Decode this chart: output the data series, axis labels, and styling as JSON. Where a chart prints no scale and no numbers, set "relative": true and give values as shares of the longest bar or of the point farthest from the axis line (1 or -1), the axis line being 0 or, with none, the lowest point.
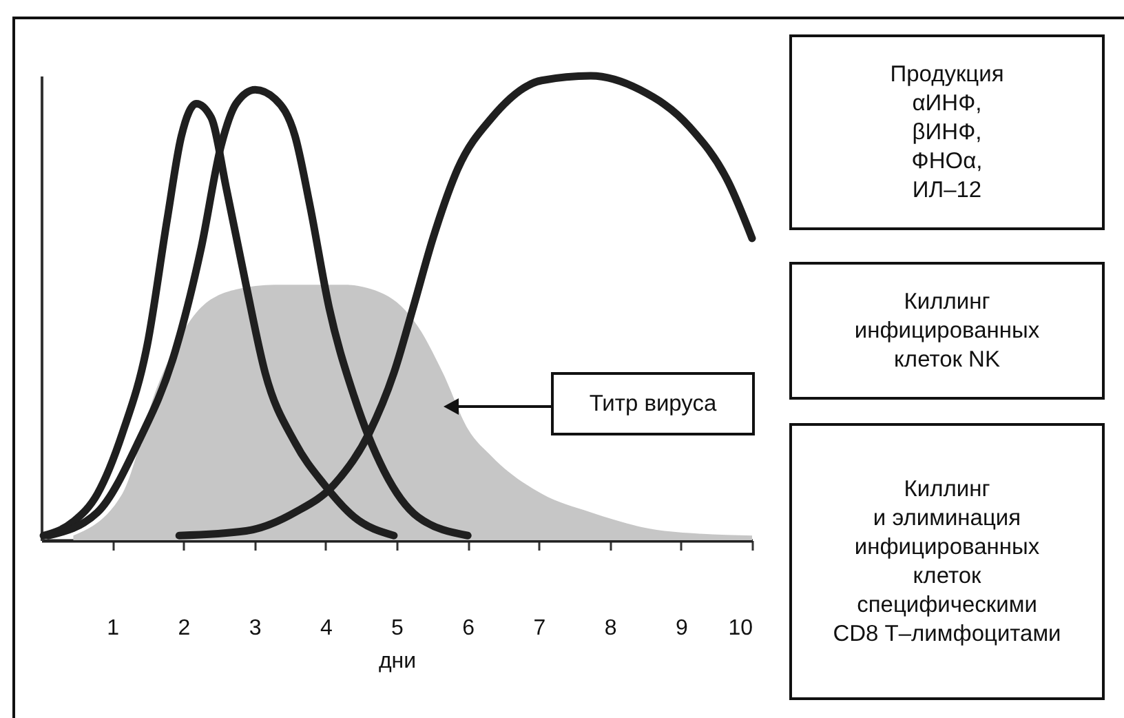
{
  "chart_data": {
    "type": "line",
    "relative": true,
    "xlabel": "дни",
    "xlim": [
      0,
      10
    ],
    "xticks": [
      1,
      2,
      3,
      4,
      5,
      6,
      7,
      8,
      9,
      10
    ],
    "grid": false,
    "marker": "none",
    "line_style": "solid",
    "series": [
      {
        "type": "area",
        "color": "#c6c6c6",
        "x": [
          0.45,
          1.14,
          1.63,
          2.18,
          2.74,
          3.29,
          4.26,
          4.82,
          5.3,
          5.65,
          6.0,
          6.34,
          7.04,
          7.73,
          8.77,
          10
        ],
        "values": [
          0.01,
          0.1,
          0.33,
          0.49,
          0.54,
          0.55,
          0.55,
          0.53,
          0.46,
          0.36,
          0.24,
          0.18,
          0.1,
          0.06,
          0.02,
          0.01
        ]
      },
      {
        "color": "#1f1f1f",
        "x": [
          0.03,
          0.45,
          0.79,
          1.14,
          1.49,
          1.77,
          1.97,
          2.18,
          2.39,
          2.6,
          2.88,
          3.15,
          3.57,
          3.98,
          4.4,
          4.96
        ],
        "values": [
          0.01,
          0.04,
          0.1,
          0.23,
          0.42,
          0.69,
          0.87,
          0.94,
          0.91,
          0.76,
          0.55,
          0.36,
          0.21,
          0.12,
          0.05,
          0.01
        ]
      },
      {
        "color": "#1f1f1f",
        "x": [
          0.1,
          0.79,
          1.36,
          1.87,
          2.25,
          2.53,
          2.74,
          3.01,
          3.29,
          3.57,
          3.78,
          4.05,
          4.4,
          4.82,
          5.3,
          6.0
        ],
        "values": [
          0.01,
          0.06,
          0.21,
          0.4,
          0.63,
          0.85,
          0.94,
          0.97,
          0.95,
          0.87,
          0.72,
          0.5,
          0.31,
          0.15,
          0.05,
          0.01
        ]
      },
      {
        "color": "#1f1f1f",
        "x": [
          1.94,
          2.88,
          3.57,
          4.12,
          4.61,
          4.96,
          5.23,
          5.51,
          5.86,
          6.34,
          7.04,
          7.73,
          8.42,
          9.12,
          9.67,
          10
        ],
        "values": [
          0.01,
          0.02,
          0.06,
          0.12,
          0.23,
          0.36,
          0.5,
          0.65,
          0.8,
          0.91,
          0.99,
          1.0,
          0.97,
          0.89,
          0.77,
          0.65
        ]
      }
    ],
    "annotations": [
      "Титр вируса",
      "Продукция\nαИНФ,\nβИНФ,\nФНОα,\nИЛ–12",
      "Киллинг\nинфицированных\nклеток NK",
      "Киллинг\nи элиминация\nинфицированных\nклеток\nспецифическими\nCD8 Т–лимфоцитами"
    ]
  }
}
